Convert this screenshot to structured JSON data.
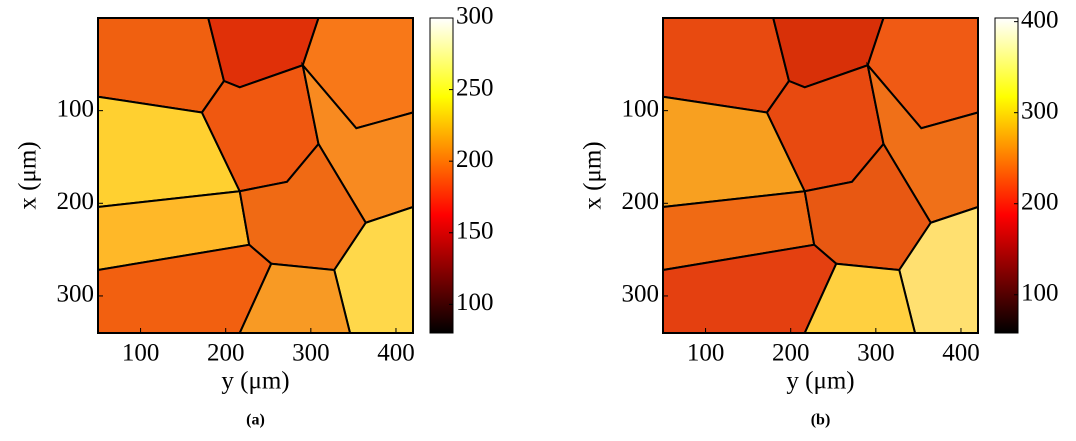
{
  "chart_data": [
    {
      "type": "heatmap",
      "caption": "(a)",
      "xlabel": "y (μm)",
      "ylabel": "x (μm)",
      "xlim": [
        50,
        420
      ],
      "xticks": [
        100,
        200,
        300,
        400
      ],
      "ylim": [
        0,
        340
      ],
      "yticks": [
        100,
        200,
        300
      ],
      "colormap": "hot",
      "colorbar": {
        "lim": [
          80,
          300
        ],
        "ticks": [
          100,
          150,
          200,
          250,
          300
        ]
      }
    },
    {
      "type": "heatmap",
      "caption": "(b)",
      "xlabel": "y (μm)",
      "ylabel": "x (μm)",
      "xlim": [
        50,
        420
      ],
      "xticks": [
        100,
        200,
        300,
        400
      ],
      "ylim": [
        0,
        340
      ],
      "yticks": [
        100,
        200,
        300
      ],
      "colormap": "hot",
      "colorbar": {
        "lim": [
          58,
          404
        ],
        "ticks": [
          100,
          200,
          300,
          400
        ]
      }
    }
  ]
}
